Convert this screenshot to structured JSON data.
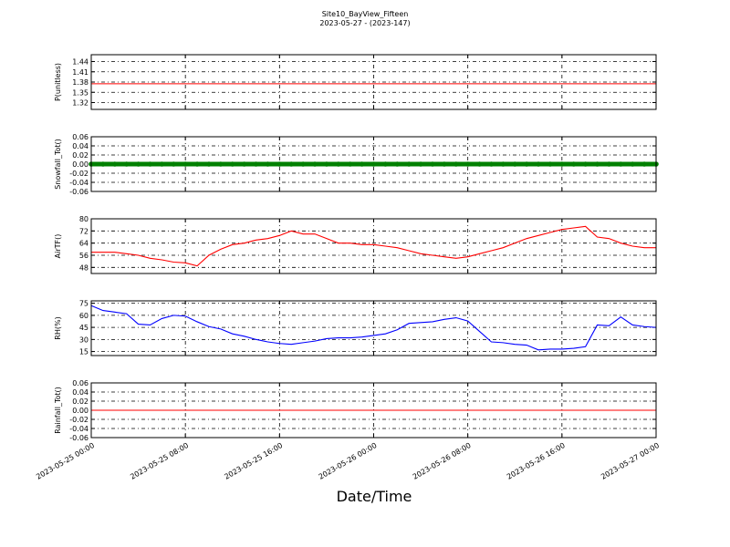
{
  "chart_data": {
    "type": "line",
    "title": "Site10_BayView_Fifteen",
    "subtitle": "2023-05-27 - (2023-147)",
    "xlabel": "Date/Time",
    "grid": true,
    "x": [
      "2023-05-25 00:00",
      "2023-05-25 01:00",
      "2023-05-25 02:00",
      "2023-05-25 03:00",
      "2023-05-25 04:00",
      "2023-05-25 05:00",
      "2023-05-25 06:00",
      "2023-05-25 07:00",
      "2023-05-25 08:00",
      "2023-05-25 09:00",
      "2023-05-25 10:00",
      "2023-05-25 11:00",
      "2023-05-25 12:00",
      "2023-05-25 13:00",
      "2023-05-25 14:00",
      "2023-05-25 15:00",
      "2023-05-25 16:00",
      "2023-05-25 17:00",
      "2023-05-25 18:00",
      "2023-05-25 19:00",
      "2023-05-25 20:00",
      "2023-05-25 21:00",
      "2023-05-25 22:00",
      "2023-05-25 23:00",
      "2023-05-26 00:00",
      "2023-05-26 01:00",
      "2023-05-26 02:00",
      "2023-05-26 03:00",
      "2023-05-26 04:00",
      "2023-05-26 05:00",
      "2023-05-26 06:00",
      "2023-05-26 07:00",
      "2023-05-26 08:00",
      "2023-05-26 09:00",
      "2023-05-26 10:00",
      "2023-05-26 11:00",
      "2023-05-26 12:00",
      "2023-05-26 13:00",
      "2023-05-26 14:00",
      "2023-05-26 15:00",
      "2023-05-26 16:00",
      "2023-05-26 17:00",
      "2023-05-26 18:00",
      "2023-05-26 19:00",
      "2023-05-26 20:00",
      "2023-05-26 21:00",
      "2023-05-26 22:00",
      "2023-05-26 23:00",
      "2023-05-27 00:00"
    ],
    "xlim": [
      "2023-05-25 00:00",
      "2023-05-27 00:00"
    ],
    "xticks": [
      "2023-05-25 00:00",
      "2023-05-25 08:00",
      "2023-05-25 16:00",
      "2023-05-26 00:00",
      "2023-05-26 08:00",
      "2023-05-26 16:00",
      "2023-05-27 00:00"
    ],
    "panels": [
      {
        "ylabel": "P(unitless)",
        "ylim": [
          1.3,
          1.46
        ],
        "yticks": [
          1.32,
          1.35,
          1.38,
          1.41,
          1.44
        ],
        "series": [
          {
            "color": "#ff0000",
            "style": "line",
            "values": [
              1.375,
              1.375,
              1.375,
              1.375,
              1.375,
              1.375,
              1.375,
              1.375,
              1.375,
              1.375,
              1.375,
              1.375,
              1.375,
              1.375,
              1.375,
              1.375,
              1.375,
              1.375,
              1.375,
              1.375,
              1.375,
              1.375,
              1.375,
              1.375,
              1.375,
              1.375,
              1.375,
              1.375,
              1.375,
              1.375,
              1.375,
              1.375,
              1.375,
              1.375,
              1.375,
              1.375,
              1.375,
              1.375,
              1.375,
              1.375,
              1.375,
              1.375,
              1.375,
              1.375,
              1.375,
              1.375,
              1.375,
              1.375,
              1.375
            ]
          }
        ]
      },
      {
        "ylabel": "Snowfall_Tot()",
        "ylim": [
          -0.06,
          0.06
        ],
        "yticks": [
          -0.06,
          -0.04,
          -0.02,
          {
            "value": 0,
            "label": "0.00"
          },
          0.02,
          0.04,
          0.06
        ],
        "series": [
          {
            "color": "#008000",
            "style": "markers",
            "values": [
              0,
              0,
              0,
              0,
              0,
              0,
              0,
              0,
              0,
              0,
              0,
              0,
              0,
              0,
              0,
              0,
              0,
              0,
              0,
              0,
              0,
              0,
              0,
              0,
              0,
              0,
              0,
              0,
              0,
              0,
              0,
              0,
              0,
              0,
              0,
              0,
              0,
              0,
              0,
              0,
              0,
              0,
              0,
              0,
              0,
              0,
              0,
              0,
              0
            ]
          }
        ]
      },
      {
        "ylabel": "AirTF()",
        "ylim": [
          44,
          80
        ],
        "yticks": [
          48,
          56,
          64,
          72,
          80
        ],
        "series": [
          {
            "color": "#ff0000",
            "style": "line",
            "values": [
              58,
              58,
              58,
              57,
              56,
              54,
              53,
              51.5,
              51,
              49,
              56,
              60,
              63,
              64,
              66,
              67,
              69,
              72,
              70,
              70,
              67,
              64,
              64,
              63,
              63,
              62,
              61,
              59,
              57,
              56,
              55,
              54,
              55,
              57,
              59,
              61,
              64,
              67,
              69,
              71,
              73,
              74,
              75,
              68,
              67,
              64,
              62,
              61,
              61
            ]
          }
        ]
      },
      {
        "ylabel": "RH(%)",
        "ylim": [
          10,
          78
        ],
        "yticks": [
          15,
          30,
          45,
          60,
          75
        ],
        "series": [
          {
            "color": "#0000ff",
            "style": "line",
            "values": [
              72,
              66,
              64,
              62,
              49,
              48,
              56,
              60,
              59,
              52,
              46,
              43,
              37,
              34,
              30,
              27,
              25,
              24,
              26,
              28,
              31,
              32,
              32,
              33,
              35,
              37,
              42,
              50,
              51,
              52,
              55,
              57,
              53,
              40,
              27,
              26,
              24,
              23,
              17,
              18,
              18,
              19,
              21,
              48,
              47,
              58,
              48,
              46,
              45
            ]
          }
        ]
      },
      {
        "ylabel": "Rainfall_Tot()",
        "ylim": [
          -0.06,
          0.06
        ],
        "yticks": [
          -0.06,
          -0.04,
          -0.02,
          {
            "value": 0,
            "label": "0.00"
          },
          0.02,
          0.04,
          0.06
        ],
        "series": [
          {
            "color": "#ff0000",
            "style": "line",
            "values": [
              0,
              0,
              0,
              0,
              0,
              0,
              0,
              0,
              0,
              0,
              0,
              0,
              0,
              0,
              0,
              0,
              0,
              0,
              0,
              0,
              0,
              0,
              0,
              0,
              0,
              0,
              0,
              0,
              0,
              0,
              0,
              0,
              0,
              0,
              0,
              0,
              0,
              0,
              0,
              0,
              0,
              0,
              0,
              0,
              0,
              0,
              0,
              0,
              0
            ]
          }
        ]
      }
    ]
  }
}
